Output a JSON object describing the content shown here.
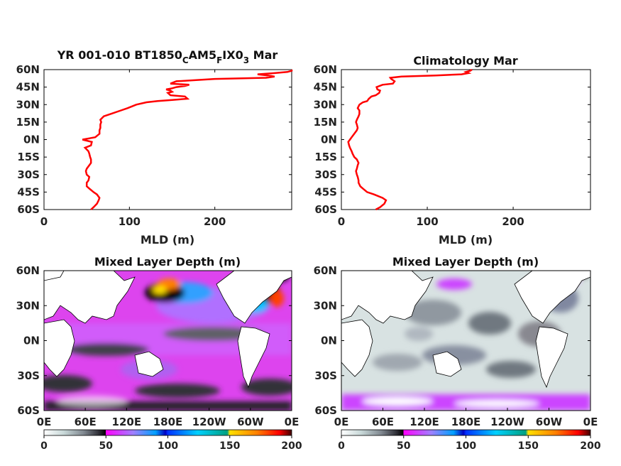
{
  "colors": {
    "profile_line": "#ff0000",
    "land": "#ffffff",
    "coast": "#000000",
    "colormap": [
      "#ffffff",
      "#c8d8d8",
      "#808890",
      "#303038",
      "#000000",
      "#ff00ff",
      "#a080ff",
      "#00a0ff",
      "#0000c0",
      "#00d0ff",
      "#00a080",
      "#ffe000",
      "#ff8000",
      "#ff0000",
      "#800000",
      "#000000"
    ]
  },
  "chart_data": [
    {
      "type": "line",
      "title_main": "YR 001-010 BT1850",
      "title_sub1": "C",
      "title_mid": "AM5",
      "title_sub2": "F",
      "title_mid2": "IX0",
      "title_sub3": "3",
      "title_end": " Mar",
      "xlabel": "MLD (m)",
      "xlim": [
        0,
        290
      ],
      "ylim": [
        -60,
        60
      ],
      "xticks": [
        "0",
        "100",
        "200"
      ],
      "yticks": [
        "60N",
        "45N",
        "30N",
        "15N",
        "0N",
        "15S",
        "30S",
        "45S",
        "60S"
      ],
      "series": [
        {
          "lat": [
            -60,
            -58,
            -55,
            -52,
            -50,
            -47,
            -45,
            -42,
            -40,
            -37,
            -35,
            -32,
            -30,
            -27,
            -25,
            -22,
            -20,
            -17,
            -15,
            -12,
            -10,
            -7,
            -5,
            -2,
            0,
            2,
            5,
            8,
            10,
            13,
            15,
            17,
            20,
            22,
            25,
            27,
            30,
            32,
            33,
            34,
            35,
            37,
            38,
            40,
            41,
            42,
            43,
            44,
            45,
            46,
            47,
            48,
            50,
            52,
            53,
            54,
            55,
            56,
            57,
            58,
            59,
            60
          ],
          "mld": [
            55,
            58,
            62,
            64,
            65,
            62,
            58,
            53,
            50,
            50,
            52,
            53,
            50,
            49,
            50,
            53,
            55,
            55,
            54,
            53,
            52,
            48,
            55,
            56,
            45,
            60,
            65,
            65,
            66,
            66,
            67,
            66,
            70,
            78,
            90,
            98,
            108,
            120,
            133,
            150,
            168,
            165,
            148,
            145,
            150,
            148,
            143,
            150,
            155,
            165,
            170,
            148,
            155,
            200,
            260,
            270,
            262,
            250,
            270,
            285,
            292,
            290
          ]
        }
      ]
    },
    {
      "type": "line",
      "title": "Climatology Mar",
      "xlabel": "MLD (m)",
      "xlim": [
        0,
        290
      ],
      "ylim": [
        -60,
        60
      ],
      "xticks": [
        "0",
        "100",
        "200"
      ],
      "yticks": [
        "60N",
        "45N",
        "30N",
        "15N",
        "0N",
        "15S",
        "30S",
        "45S",
        "60S"
      ],
      "series": [
        {
          "lat": [
            -60,
            -58,
            -55,
            -52,
            -50,
            -47,
            -45,
            -42,
            -40,
            -37,
            -35,
            -32,
            -30,
            -27,
            -25,
            -22,
            -20,
            -17,
            -15,
            -12,
            -10,
            -7,
            -5,
            -2,
            0,
            2,
            5,
            8,
            10,
            13,
            15,
            17,
            20,
            22,
            25,
            27,
            30,
            32,
            33,
            35,
            37,
            38,
            40,
            42,
            43,
            45,
            47,
            48,
            50,
            52,
            53,
            54,
            55,
            56,
            57,
            58,
            59,
            60
          ],
          "mld": [
            40,
            45,
            50,
            52,
            48,
            38,
            30,
            25,
            22,
            20,
            20,
            19,
            18,
            17,
            18,
            19,
            20,
            18,
            15,
            13,
            12,
            10,
            9,
            8,
            10,
            12,
            15,
            18,
            19,
            18,
            17,
            18,
            20,
            21,
            21,
            19,
            21,
            25,
            30,
            32,
            35,
            40,
            44,
            45,
            42,
            41,
            48,
            60,
            62,
            58,
            57,
            70,
            110,
            140,
            148,
            145,
            150,
            152
          ]
        }
      ]
    },
    {
      "type": "heatmap",
      "title": "Mixed Layer Depth (m)",
      "xticks": [
        "0E",
        "60E",
        "120E",
        "180E",
        "120W",
        "60W",
        "0E"
      ],
      "yticks": [
        "60N",
        "30N",
        "0N",
        "30S",
        "60S"
      ],
      "cbar_ticks": [
        "0",
        "50",
        "100",
        "150",
        "200"
      ],
      "cbar_range": [
        0,
        200
      ]
    },
    {
      "type": "heatmap",
      "title": "Mixed Layer Depth (m)",
      "xticks": [
        "0E",
        "60E",
        "120E",
        "180E",
        "120W",
        "60W",
        "0E"
      ],
      "yticks": [
        "60N",
        "30N",
        "0N",
        "30S",
        "60S"
      ],
      "cbar_ticks": [
        "0",
        "50",
        "100",
        "150",
        "200"
      ],
      "cbar_range": [
        0,
        200
      ]
    }
  ]
}
